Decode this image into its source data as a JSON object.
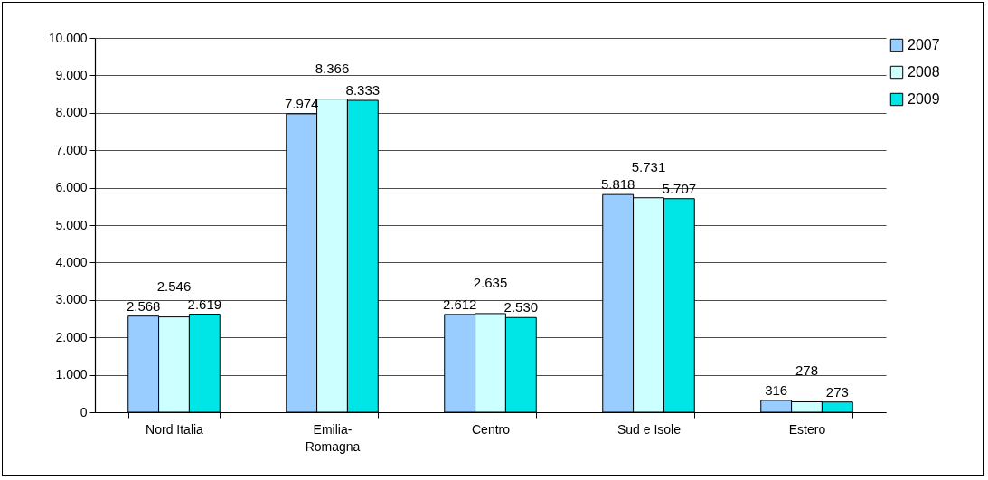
{
  "chart_data": {
    "type": "bar",
    "categories": [
      "Nord Italia",
      "Emilia-Romagna",
      "Centro",
      "Sud e Isole",
      "Estero"
    ],
    "series": [
      {
        "name": "2007",
        "color": "#99ccff",
        "values": [
          2568,
          7974,
          2612,
          5818,
          316
        ],
        "value_labels": [
          "2.568",
          "7.974",
          "2.612",
          "5.818",
          "316"
        ]
      },
      {
        "name": "2008",
        "color": "#ccffff",
        "values": [
          2546,
          8366,
          2635,
          5731,
          278
        ],
        "value_labels": [
          "2.546",
          "8.366",
          "2.635",
          "5.731",
          "278"
        ]
      },
      {
        "name": "2009",
        "color": "#00e5e5",
        "values": [
          2619,
          8333,
          2530,
          5707,
          273
        ],
        "value_labels": [
          "2.619",
          "8.333",
          "2.530",
          "5.707",
          "273"
        ]
      }
    ],
    "ylim": [
      0,
      10000
    ],
    "yticks": [
      {
        "value": 0,
        "label": "0"
      },
      {
        "value": 1000,
        "label": "1.000"
      },
      {
        "value": 2000,
        "label": "2.000"
      },
      {
        "value": 3000,
        "label": "3.000"
      },
      {
        "value": 4000,
        "label": "4.000"
      },
      {
        "value": 5000,
        "label": "5.000"
      },
      {
        "value": 6000,
        "label": "6.000"
      },
      {
        "value": 7000,
        "label": "7.000"
      },
      {
        "value": 8000,
        "label": "8.000"
      },
      {
        "value": 9000,
        "label": "9.000"
      },
      {
        "value": 10000,
        "label": "10.000"
      }
    ],
    "grid": "y",
    "legend": "right"
  }
}
